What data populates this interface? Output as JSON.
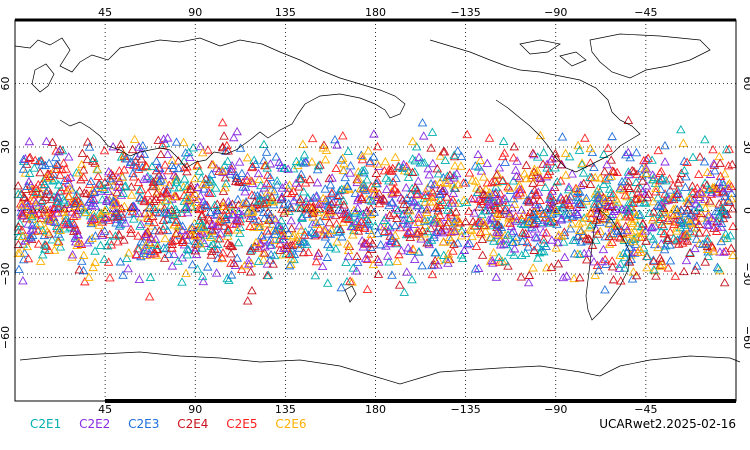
{
  "map": {
    "projection": "cylindrical equidistant, centered on 180",
    "lon_range": [
      0,
      360
    ],
    "lat_range": [
      -90,
      90
    ],
    "grid": "dotted, 45° longitude / 30° latitude",
    "top_lon_ticks": [
      "45",
      "90",
      "135",
      "180",
      "−135",
      "−90",
      "−45"
    ],
    "bottom_lon_ticks": [
      "45",
      "90",
      "135",
      "180",
      "−135",
      "−90",
      "−45"
    ],
    "lat_ticks": [
      "60",
      "30",
      "0",
      "−30",
      "−60"
    ],
    "marker": "open triangle",
    "observation_band_lat": [
      -45,
      45
    ]
  },
  "legend": {
    "items": [
      {
        "label": "C2E1",
        "color": "#00b0b0"
      },
      {
        "label": "C2E2",
        "color": "#8a2be2"
      },
      {
        "label": "C2E3",
        "color": "#1e6fd9"
      },
      {
        "label": "C2E4",
        "color": "#c8141e"
      },
      {
        "label": "C2E5",
        "color": "#ff2020"
      },
      {
        "label": "C2E6",
        "color": "#ffb000"
      }
    ]
  },
  "product_label": "UCARwet2.2025-02-16"
}
